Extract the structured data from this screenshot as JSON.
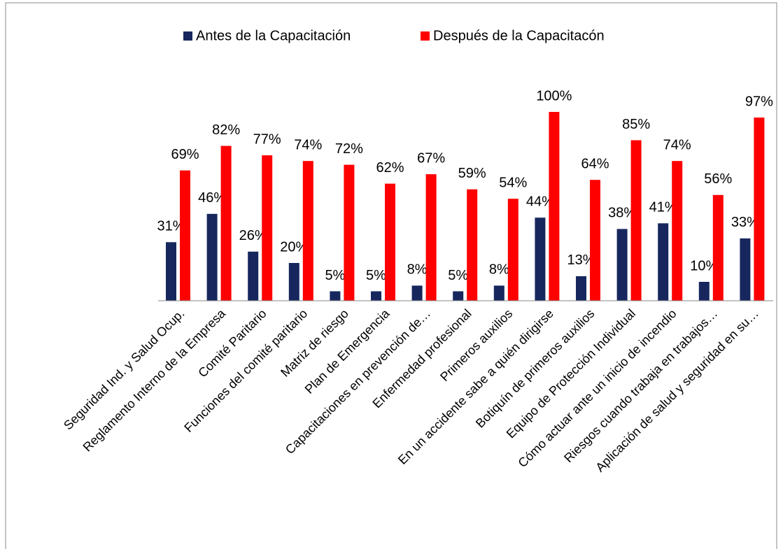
{
  "chart_data": {
    "type": "bar",
    "categories": [
      "Seguridad Ind. y Salud Ocup.",
      "Reglamento Interno de la Empresa",
      "Comité Paritario",
      "Funciones del comité paritario",
      "Matriz de riesgo",
      "Plan de Emergencia",
      "Capacitaciones en prevención de…",
      "Enfermedad profesional",
      "Primeros auxilios",
      "En un accidente sabe a quién dirigirse",
      "Botiquín de primeros auxilios",
      "Equipo de Protección Individual",
      "Cómo actuar ante un inicio de incendio",
      "Riesgos cuando trabaja en trabajos…",
      "Aplicación de salud y seguridad en su…"
    ],
    "series": [
      {
        "name": "Antes de la Capacitación",
        "color": "#17275e",
        "values": [
          31,
          46,
          26,
          20,
          5,
          5,
          8,
          5,
          8,
          44,
          13,
          38,
          41,
          10,
          33
        ],
        "value_labels": [
          "31%",
          "46%",
          "26%",
          "20%",
          "5%",
          "5%",
          "8%",
          "5%",
          "8%",
          "44%",
          "13%",
          "38%",
          "41%",
          "10%",
          "33%"
        ]
      },
      {
        "name": "Después de la Capacitacón",
        "color": "#ff0000",
        "values": [
          69,
          82,
          77,
          74,
          72,
          62,
          67,
          59,
          54,
          100,
          64,
          85,
          74,
          56,
          97
        ],
        "value_labels": [
          "69%",
          "82%",
          "77%",
          "74%",
          "72%",
          "62%",
          "67%",
          "59%",
          "54%",
          "100%",
          "64%",
          "85%",
          "74%",
          "56%",
          "97%"
        ]
      }
    ],
    "ylim": [
      0,
      100
    ]
  }
}
